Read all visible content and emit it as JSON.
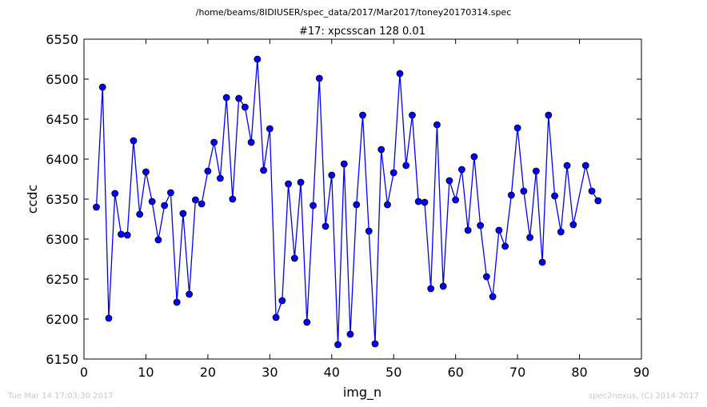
{
  "header": {
    "file_path": "/home/beams/8IDIUSER/spec_data/2017/Mar2017/toney20170314.spec"
  },
  "footer": {
    "timestamp": "Tue Mar 14 17:03:30 2017",
    "credit": "spec2nexus, (C) 2014-2017"
  },
  "chart_data": {
    "type": "line",
    "title": "#17: xpcsscan 128 0.01",
    "xlabel": "img_n",
    "ylabel": "ccdc",
    "xlim": [
      0,
      90
    ],
    "ylim": [
      6150,
      6550
    ],
    "xticks": [
      0,
      10,
      20,
      30,
      40,
      50,
      60,
      70,
      80,
      90
    ],
    "yticks": [
      6150,
      6200,
      6250,
      6300,
      6350,
      6400,
      6450,
      6500,
      6550
    ],
    "grid": false,
    "legend": "none",
    "marker": "circle",
    "colors": {
      "line": "#0000ff",
      "marker": "#0000ff",
      "marker_edge": "#000000"
    },
    "series": [
      {
        "x": [
          2,
          3,
          4,
          5,
          6,
          7,
          8,
          9,
          10,
          11,
          12,
          13,
          14,
          15,
          16,
          17,
          18,
          19,
          20,
          21,
          22,
          23,
          24,
          25,
          26,
          27,
          28,
          29,
          30,
          31,
          32,
          33,
          34,
          35,
          36,
          37,
          38,
          39,
          40,
          41,
          42,
          43,
          44,
          45,
          46,
          47,
          48,
          49,
          50,
          51,
          52,
          53,
          54,
          55,
          56,
          57,
          58,
          59,
          60,
          61,
          62,
          63,
          64,
          65,
          66,
          67,
          68,
          69,
          70,
          71,
          72,
          73,
          74,
          75,
          76,
          77,
          78,
          79,
          81,
          82,
          83
        ],
        "y": [
          6340,
          6490,
          6201,
          6357,
          6306,
          6305,
          6423,
          6331,
          6384,
          6347,
          6299,
          6342,
          6358,
          6221,
          6332,
          6231,
          6349,
          6344,
          6385,
          6421,
          6376,
          6477,
          6350,
          6476,
          6465,
          6421,
          6525,
          6386,
          6438,
          6202,
          6223,
          6369,
          6276,
          6371,
          6196,
          6342,
          6501,
          6316,
          6380,
          6168,
          6394,
          6181,
          6343,
          6455,
          6310,
          6169,
          6412,
          6343,
          6383,
          6507,
          6392,
          6455,
          6347,
          6346,
          6238,
          6443,
          6241,
          6373,
          6349,
          6387,
          6311,
          6403,
          6317,
          6253,
          6228,
          6311,
          6291,
          6355,
          6439,
          6360,
          6302,
          6385,
          6271,
          6455,
          6354,
          6309,
          6392,
          6318,
          6392,
          6360,
          6348
        ]
      }
    ]
  }
}
